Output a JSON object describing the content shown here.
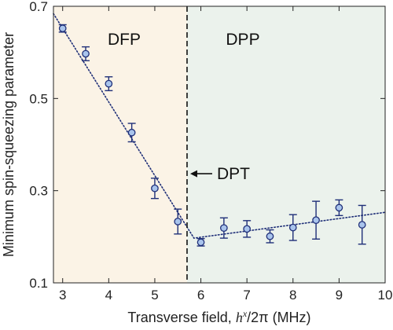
{
  "chart_data": {
    "type": "scatter",
    "title": "",
    "xlabel_text": "Transverse field, ",
    "xlabel_math": "h",
    "xlabel_sup": "x",
    "xlabel_tail": "/2π (MHz)",
    "ylabel": "Minimum spin-squeezing parameter",
    "xlim": [
      2.8,
      10
    ],
    "ylim": [
      0.1,
      0.7
    ],
    "x_ticks": [
      3,
      4,
      5,
      6,
      7,
      8,
      9,
      10
    ],
    "x_tick_labels": [
      "3",
      "4",
      "5",
      "6",
      "7",
      "8",
      "9",
      "10"
    ],
    "y_ticks": [
      0.1,
      0.3,
      0.5,
      0.7
    ],
    "y_tick_labels": [
      "0.1",
      "0.3",
      "0.5",
      "0.7"
    ],
    "grid": false,
    "points": [
      {
        "x": 3.0,
        "y": 0.652,
        "err": 0.008
      },
      {
        "x": 3.5,
        "y": 0.597,
        "err": 0.015
      },
      {
        "x": 4.0,
        "y": 0.532,
        "err": 0.015
      },
      {
        "x": 4.5,
        "y": 0.426,
        "err": 0.02
      },
      {
        "x": 5.0,
        "y": 0.305,
        "err": 0.022
      },
      {
        "x": 5.5,
        "y": 0.233,
        "err": 0.027
      },
      {
        "x": 6.0,
        "y": 0.188,
        "err": 0.008
      },
      {
        "x": 6.5,
        "y": 0.219,
        "err": 0.022
      },
      {
        "x": 7.0,
        "y": 0.217,
        "err": 0.018
      },
      {
        "x": 7.5,
        "y": 0.201,
        "err": 0.014
      },
      {
        "x": 8.0,
        "y": 0.22,
        "err": 0.028
      },
      {
        "x": 8.5,
        "y": 0.236,
        "err": 0.041
      },
      {
        "x": 9.0,
        "y": 0.263,
        "err": 0.017
      },
      {
        "x": 9.5,
        "y": 0.226,
        "err": 0.042
      }
    ],
    "fit_line": {
      "x": [
        2.8,
        5.85,
        10
      ],
      "y": [
        0.684,
        0.197,
        0.253
      ]
    },
    "regions": [
      {
        "label": "DFP",
        "x_start": 2.8,
        "x_end": 5.7,
        "color": "#fbf3e6"
      },
      {
        "label": "DPP",
        "x_start": 5.7,
        "x_end": 10,
        "color": "#ebf2ec"
      }
    ],
    "boundary_x": 5.7,
    "annotation": {
      "label": "DPT",
      "x": 5.7,
      "y": 0.33
    },
    "colors": {
      "marker_fill": "#a9c4ec",
      "marker_edge": "#1f2f78",
      "fit_line": "#1f2f78",
      "boundary": "#111111"
    }
  }
}
